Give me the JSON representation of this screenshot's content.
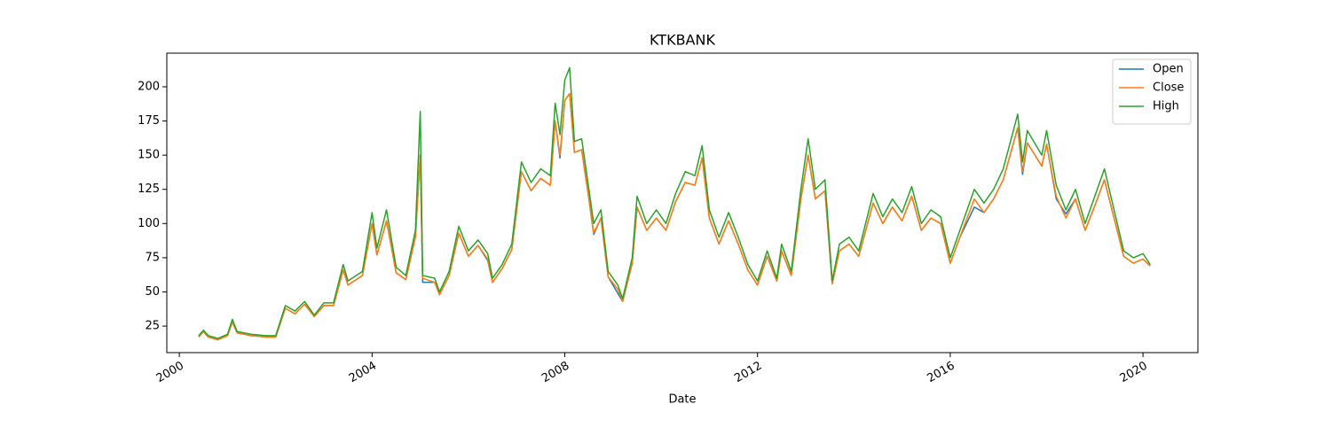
{
  "chart_data": {
    "type": "line",
    "title": "KTKBANK",
    "xlabel": "Date",
    "x": [
      2000.4,
      2000.5,
      2000.6,
      2000.8,
      2001.0,
      2001.1,
      2001.2,
      2001.5,
      2001.8,
      2002.0,
      2002.2,
      2002.4,
      2002.6,
      2002.8,
      2003.0,
      2003.2,
      2003.4,
      2003.5,
      2003.8,
      2004.0,
      2004.1,
      2004.3,
      2004.5,
      2004.7,
      2004.9,
      2005.0,
      2005.05,
      2005.3,
      2005.4,
      2005.6,
      2005.8,
      2006.0,
      2006.2,
      2006.4,
      2006.5,
      2006.7,
      2006.9,
      2007.1,
      2007.3,
      2007.5,
      2007.7,
      2007.8,
      2007.9,
      2008.0,
      2008.1,
      2008.2,
      2008.35,
      2008.5,
      2008.6,
      2008.75,
      2008.9,
      2009.1,
      2009.2,
      2009.4,
      2009.5,
      2009.7,
      2009.9,
      2010.1,
      2010.3,
      2010.5,
      2010.7,
      2010.85,
      2011.0,
      2011.2,
      2011.4,
      2011.6,
      2011.8,
      2012.0,
      2012.2,
      2012.4,
      2012.5,
      2012.7,
      2012.9,
      2013.05,
      2013.2,
      2013.4,
      2013.55,
      2013.7,
      2013.9,
      2014.1,
      2014.4,
      2014.6,
      2014.8,
      2015.0,
      2015.2,
      2015.4,
      2015.6,
      2015.8,
      2016.0,
      2016.2,
      2016.5,
      2016.7,
      2016.9,
      2017.1,
      2017.4,
      2017.5,
      2017.6,
      2017.9,
      2018.0,
      2018.2,
      2018.4,
      2018.6,
      2018.8,
      2019.0,
      2019.2,
      2019.4,
      2019.6,
      2019.8,
      2020.0,
      2020.15
    ],
    "series": [
      {
        "name": "Open",
        "color": "#1f77b4",
        "values": [
          17,
          21,
          17,
          15,
          18,
          28,
          20,
          18,
          17,
          17,
          38,
          34,
          41,
          32,
          40,
          40,
          66,
          55,
          62,
          100,
          77,
          102,
          64,
          59,
          90,
          150,
          57,
          57,
          48,
          62,
          93,
          76,
          84,
          73,
          57,
          67,
          81,
          138,
          124,
          133,
          128,
          175,
          148,
          190,
          195,
          152,
          154,
          118,
          92,
          104,
          61,
          49,
          43,
          71,
          112,
          95,
          104,
          95,
          116,
          130,
          128,
          148,
          104,
          85,
          102,
          85,
          66,
          55,
          76,
          58,
          80,
          62,
          118,
          150,
          118,
          124,
          56,
          80,
          85,
          76,
          115,
          100,
          112,
          102,
          120,
          95,
          104,
          100,
          71,
          90,
          112,
          108,
          118,
          132,
          170,
          136,
          159,
          142,
          158,
          118,
          107,
          118,
          95,
          113,
          132,
          104,
          76,
          71,
          74,
          69
        ]
      },
      {
        "name": "Close",
        "color": "#ff7f0e",
        "values": [
          17,
          21,
          17,
          15,
          18,
          28,
          20,
          18,
          17,
          17,
          38,
          34,
          41,
          32,
          40,
          40,
          66,
          55,
          62,
          100,
          77,
          102,
          64,
          59,
          90,
          150,
          60,
          57,
          48,
          62,
          93,
          76,
          84,
          74,
          57,
          67,
          81,
          138,
          124,
          133,
          128,
          175,
          150,
          190,
          195,
          152,
          154,
          118,
          93,
          104,
          61,
          52,
          43,
          71,
          112,
          95,
          104,
          95,
          116,
          130,
          128,
          148,
          104,
          85,
          102,
          85,
          66,
          55,
          76,
          58,
          80,
          62,
          118,
          150,
          118,
          124,
          56,
          80,
          85,
          76,
          115,
          100,
          112,
          102,
          120,
          95,
          104,
          100,
          71,
          90,
          118,
          108,
          118,
          132,
          170,
          138,
          159,
          142,
          158,
          120,
          104,
          118,
          95,
          113,
          132,
          104,
          76,
          71,
          74,
          69
        ]
      },
      {
        "name": "High",
        "color": "#2ca02c",
        "values": [
          18,
          22,
          18,
          16,
          19,
          30,
          21,
          19,
          18,
          18,
          40,
          36,
          43,
          33,
          42,
          42,
          70,
          58,
          65,
          108,
          82,
          110,
          68,
          62,
          95,
          182,
          62,
          60,
          50,
          65,
          98,
          80,
          88,
          78,
          60,
          70,
          85,
          145,
          130,
          140,
          135,
          188,
          165,
          205,
          214,
          160,
          162,
          125,
          100,
          110,
          65,
          55,
          45,
          75,
          120,
          100,
          110,
          100,
          122,
          138,
          135,
          157,
          110,
          90,
          108,
          90,
          70,
          58,
          80,
          60,
          85,
          65,
          125,
          162,
          125,
          132,
          58,
          85,
          90,
          80,
          122,
          105,
          118,
          108,
          127,
          100,
          110,
          105,
          75,
          95,
          125,
          115,
          125,
          140,
          180,
          145,
          168,
          150,
          168,
          128,
          110,
          125,
          100,
          120,
          140,
          110,
          80,
          75,
          78,
          70
        ]
      }
    ],
    "xlim": [
      1999.74,
      2021.14
    ],
    "xticks": [
      2000,
      2004,
      2008,
      2012,
      2016,
      2020
    ],
    "ylim": [
      5.6,
      224.6
    ],
    "yticks": [
      25,
      50,
      75,
      100,
      125,
      150,
      175,
      200
    ],
    "legend": "upper right",
    "grid": false
  }
}
